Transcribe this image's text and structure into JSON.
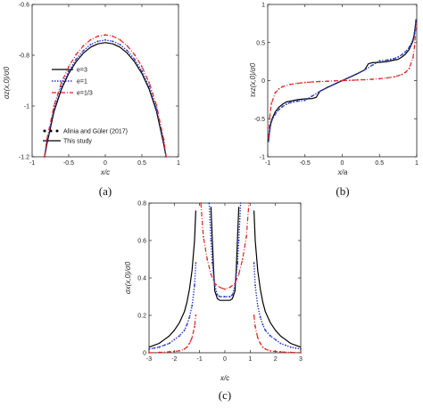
{
  "colors": {
    "black": "#000000",
    "blue": "#2233cc",
    "red": "#dd2222",
    "axis": "#222222"
  },
  "chart_data": [
    {
      "id": "a",
      "type": "line",
      "caption": "(a)",
      "xlabel": "x/c",
      "ylabel": "σz(x,0)/σ0",
      "xlim": [
        -1,
        1
      ],
      "ylim": [
        -1.2,
        -0.6
      ],
      "y_inverted": true,
      "x_ticks": [
        -1,
        -0.5,
        0,
        0.5,
        1
      ],
      "x_tick_labels": [
        "-1",
        "-0.5",
        "0",
        "0.5",
        "1"
      ],
      "y_ticks": [
        -0.6,
        -0.8,
        -1,
        -1.2
      ],
      "y_tick_labels": [
        "-0.6",
        "-0.8",
        "-1",
        "-1.2"
      ],
      "legend": {
        "placement": "left",
        "entries": [
          {
            "label": "e=3",
            "color": "#000000",
            "style": "solid"
          },
          {
            "label": "e=1",
            "color": "#2233cc",
            "style": "dotted"
          },
          {
            "label": "e=1/3",
            "color": "#dd2222",
            "style": "dashdot"
          },
          {
            "label": "Alinia and Güler (2017)",
            "color": "#000000",
            "style": "markers"
          },
          {
            "label": "This study",
            "color": "#000000",
            "style": "solid"
          }
        ]
      },
      "series": [
        {
          "name": "e=3",
          "color": "#000000",
          "style": "solid",
          "x": [
            -0.83,
            -0.8,
            -0.7,
            -0.6,
            -0.5,
            -0.4,
            -0.3,
            -0.2,
            -0.1,
            0,
            0.1,
            0.2,
            0.3,
            0.4,
            0.5,
            0.6,
            0.7,
            0.8,
            0.83
          ],
          "y": [
            -1.2,
            -1.153,
            -1.021,
            -0.934,
            -0.872,
            -0.826,
            -0.792,
            -0.768,
            -0.755,
            -0.75,
            -0.755,
            -0.768,
            -0.792,
            -0.826,
            -0.872,
            -0.934,
            -1.021,
            -1.153,
            -1.2
          ]
        },
        {
          "name": "e=1",
          "color": "#2233cc",
          "style": "dotted",
          "x": [
            -0.83,
            -0.8,
            -0.7,
            -0.6,
            -0.5,
            -0.4,
            -0.3,
            -0.2,
            -0.1,
            0,
            0.1,
            0.2,
            0.3,
            0.4,
            0.5,
            0.6,
            0.7,
            0.8,
            0.83
          ],
          "y": [
            -1.2,
            -1.143,
            -1.011,
            -0.924,
            -0.862,
            -0.816,
            -0.782,
            -0.758,
            -0.745,
            -0.74,
            -0.745,
            -0.758,
            -0.782,
            -0.816,
            -0.862,
            -0.924,
            -1.011,
            -1.143,
            -1.2
          ]
        },
        {
          "name": "e=1/3",
          "color": "#dd2222",
          "style": "dashdot",
          "x": [
            -0.83,
            -0.8,
            -0.7,
            -0.6,
            -0.5,
            -0.4,
            -0.3,
            -0.2,
            -0.1,
            0,
            0.1,
            0.2,
            0.3,
            0.4,
            0.5,
            0.6,
            0.7,
            0.8,
            0.83
          ],
          "y": [
            -1.2,
            -1.133,
            -0.998,
            -0.908,
            -0.845,
            -0.798,
            -0.763,
            -0.739,
            -0.725,
            -0.72,
            -0.725,
            -0.739,
            -0.763,
            -0.798,
            -0.845,
            -0.908,
            -0.998,
            -1.133,
            -1.2
          ]
        }
      ]
    },
    {
      "id": "b",
      "type": "line",
      "caption": "(b)",
      "xlabel": "x/a",
      "ylabel": "τxz(x,0)/σ0",
      "xlim": [
        -1,
        1
      ],
      "ylim": [
        -1,
        1
      ],
      "x_ticks": [
        -1,
        -0.5,
        0,
        0.5,
        1
      ],
      "x_tick_labels": [
        "-1",
        "-0.5",
        "0",
        "0.5",
        "1"
      ],
      "y_ticks": [
        1,
        0.5,
        0,
        -0.5,
        -1
      ],
      "y_tick_labels": [
        "1",
        "0.5",
        "0",
        "-0.5",
        "-1"
      ],
      "series": [
        {
          "name": "e=3",
          "color": "#000000",
          "style": "solid",
          "x": [
            -0.99,
            -0.97,
            -0.95,
            -0.9,
            -0.85,
            -0.8,
            -0.75,
            -0.7,
            -0.6,
            -0.5,
            -0.4,
            -0.35,
            -0.3,
            -0.2,
            -0.1,
            0,
            0.1,
            0.2,
            0.3,
            0.35,
            0.4,
            0.5,
            0.6,
            0.7,
            0.75,
            0.8,
            0.85,
            0.9,
            0.95,
            0.97,
            0.99
          ],
          "y": [
            -0.8,
            -0.62,
            -0.52,
            -0.41,
            -0.35,
            -0.31,
            -0.28,
            -0.27,
            -0.25,
            -0.24,
            -0.235,
            -0.22,
            -0.14,
            -0.09,
            -0.045,
            0,
            0.045,
            0.09,
            0.14,
            0.22,
            0.235,
            0.24,
            0.25,
            0.27,
            0.28,
            0.31,
            0.35,
            0.41,
            0.52,
            0.62,
            0.8
          ]
        },
        {
          "name": "e=1",
          "color": "#2233cc",
          "style": "dotted",
          "x": [
            -0.99,
            -0.97,
            -0.95,
            -0.9,
            -0.85,
            -0.8,
            -0.75,
            -0.7,
            -0.65,
            -0.6,
            -0.5,
            -0.4,
            -0.3,
            -0.2,
            -0.1,
            0,
            0.1,
            0.2,
            0.3,
            0.4,
            0.5,
            0.6,
            0.65,
            0.7,
            0.75,
            0.8,
            0.85,
            0.9,
            0.95,
            0.97,
            0.99
          ],
          "y": [
            -0.8,
            -0.63,
            -0.54,
            -0.44,
            -0.38,
            -0.34,
            -0.31,
            -0.29,
            -0.28,
            -0.27,
            -0.26,
            -0.2,
            -0.14,
            -0.09,
            -0.045,
            0,
            0.045,
            0.09,
            0.14,
            0.2,
            0.26,
            0.27,
            0.28,
            0.29,
            0.31,
            0.34,
            0.38,
            0.44,
            0.54,
            0.63,
            0.8
          ]
        },
        {
          "name": "e=1/3",
          "color": "#dd2222",
          "style": "dashdot",
          "x": [
            -0.99,
            -0.97,
            -0.95,
            -0.9,
            -0.85,
            -0.8,
            -0.7,
            -0.6,
            -0.5,
            -0.4,
            -0.3,
            -0.2,
            -0.1,
            0,
            0.1,
            0.2,
            0.3,
            0.4,
            0.5,
            0.6,
            0.7,
            0.8,
            0.85,
            0.9,
            0.95,
            0.97,
            0.99
          ],
          "y": [
            -0.75,
            -0.45,
            -0.3,
            -0.16,
            -0.11,
            -0.08,
            -0.05,
            -0.035,
            -0.025,
            -0.018,
            -0.012,
            -0.008,
            -0.004,
            0,
            0.004,
            0.008,
            0.012,
            0.018,
            0.025,
            0.035,
            0.05,
            0.08,
            0.11,
            0.16,
            0.3,
            0.45,
            0.75
          ]
        }
      ]
    },
    {
      "id": "c",
      "type": "line",
      "caption": "(c)",
      "xlabel": "x/c",
      "ylabel": "σx(x,0)/σ0",
      "xlim": [
        -3,
        3
      ],
      "ylim": [
        0,
        0.8
      ],
      "y_inverted": true,
      "x_ticks": [
        -3,
        -2,
        -1,
        0,
        1,
        2,
        3
      ],
      "x_tick_labels": [
        "-3",
        "-2",
        "-1",
        "0",
        "1",
        "2",
        "3"
      ],
      "y_ticks": [
        0,
        0.2,
        0.4,
        0.6,
        0.8
      ],
      "y_tick_labels": [
        "0",
        "0.2",
        "0.4",
        "0.6",
        "0.8"
      ],
      "series": [
        {
          "name": "e=3",
          "color": "#000000",
          "style": "solid",
          "x": [
            -3,
            -2.8,
            -2.6,
            -2.4,
            -2.2,
            -2,
            -1.8,
            -1.6,
            -1.5,
            -1.4,
            -1.3,
            -1.2,
            -1.15
          ],
          "y": [
            0.03,
            0.04,
            0.05,
            0.07,
            0.09,
            0.12,
            0.16,
            0.22,
            0.27,
            0.34,
            0.44,
            0.6,
            0.76
          ]
        },
        {
          "name": "e=3",
          "color": "#000000",
          "style": "solid",
          "x": [
            -0.55,
            -0.5,
            -0.45,
            -0.4,
            -0.3,
            -0.2,
            0,
            0.2,
            0.3,
            0.4,
            0.45,
            0.5,
            0.55
          ],
          "y": [
            0.78,
            0.62,
            0.45,
            0.33,
            0.29,
            0.28,
            0.28,
            0.28,
            0.29,
            0.33,
            0.45,
            0.62,
            0.78
          ]
        },
        {
          "name": "e=3",
          "color": "#000000",
          "style": "solid",
          "x": [
            1.15,
            1.2,
            1.3,
            1.4,
            1.5,
            1.6,
            1.8,
            2,
            2.2,
            2.4,
            2.6,
            2.8,
            3
          ],
          "y": [
            0.76,
            0.6,
            0.44,
            0.34,
            0.27,
            0.22,
            0.16,
            0.12,
            0.09,
            0.07,
            0.05,
            0.04,
            0.03
          ]
        },
        {
          "name": "e=1",
          "color": "#2233cc",
          "style": "dotted",
          "x": [
            -3,
            -2.8,
            -2.6,
            -2.4,
            -2.2,
            -2,
            -1.8,
            -1.6,
            -1.5,
            -1.4,
            -1.3,
            -1.2,
            -1.15
          ],
          "y": [
            0.02,
            0.025,
            0.03,
            0.04,
            0.05,
            0.07,
            0.09,
            0.12,
            0.15,
            0.19,
            0.25,
            0.36,
            0.48
          ]
        },
        {
          "name": "e=1",
          "color": "#2233cc",
          "style": "dotted",
          "x": [
            -0.62,
            -0.55,
            -0.5,
            -0.4,
            -0.3,
            -0.2,
            0,
            0.2,
            0.3,
            0.4,
            0.5,
            0.55,
            0.62
          ],
          "y": [
            0.8,
            0.6,
            0.48,
            0.36,
            0.31,
            0.3,
            0.3,
            0.3,
            0.31,
            0.36,
            0.48,
            0.6,
            0.8
          ]
        },
        {
          "name": "e=1",
          "color": "#2233cc",
          "style": "dotted",
          "x": [
            1.15,
            1.2,
            1.3,
            1.4,
            1.5,
            1.6,
            1.8,
            2,
            2.2,
            2.4,
            2.6,
            2.8,
            3
          ],
          "y": [
            0.48,
            0.36,
            0.25,
            0.19,
            0.15,
            0.12,
            0.09,
            0.07,
            0.05,
            0.04,
            0.03,
            0.025,
            0.02
          ]
        },
        {
          "name": "e=1/3",
          "color": "#dd2222",
          "style": "dashdot",
          "x": [
            -3,
            -2.6,
            -2.2,
            -2,
            -1.8,
            -1.6,
            -1.5,
            -1.4,
            -1.3,
            -1.2,
            -1.15
          ],
          "y": [
            0.0,
            0.002,
            0.005,
            0.007,
            0.01,
            0.02,
            0.03,
            0.05,
            0.08,
            0.14,
            0.2
          ]
        },
        {
          "name": "e=1/3",
          "color": "#dd2222",
          "style": "dashdot",
          "x": [
            -0.95,
            -0.85,
            -0.7,
            -0.55,
            -0.4,
            -0.2,
            0,
            0.2,
            0.4,
            0.55,
            0.7,
            0.85,
            0.95
          ],
          "y": [
            0.8,
            0.62,
            0.5,
            0.42,
            0.37,
            0.35,
            0.34,
            0.35,
            0.37,
            0.42,
            0.5,
            0.62,
            0.8
          ]
        },
        {
          "name": "e=1/3",
          "color": "#dd2222",
          "style": "dashdot",
          "x": [
            1.15,
            1.2,
            1.3,
            1.4,
            1.5,
            1.6,
            1.8,
            2,
            2.2,
            2.6,
            3
          ],
          "y": [
            0.2,
            0.14,
            0.08,
            0.05,
            0.03,
            0.02,
            0.01,
            0.007,
            0.005,
            0.002,
            0.0
          ]
        }
      ]
    }
  ]
}
